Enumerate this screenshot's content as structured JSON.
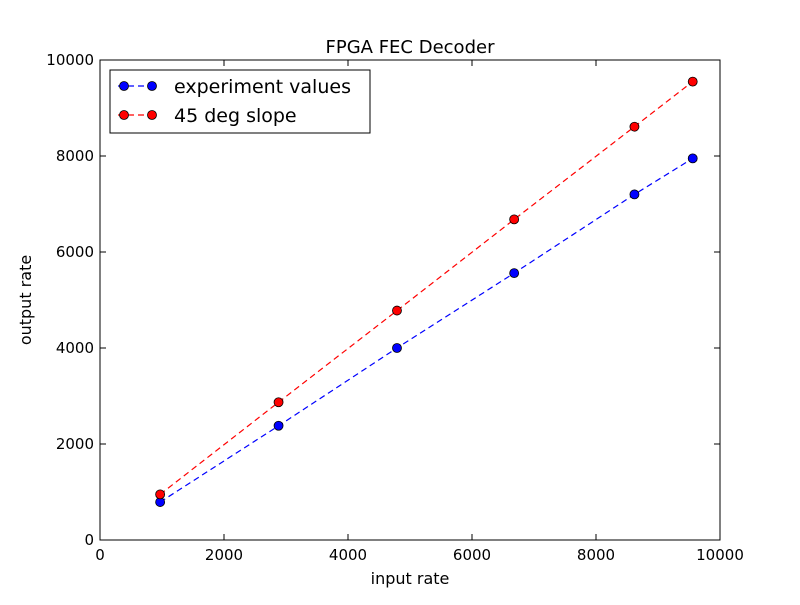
{
  "chart_data": {
    "type": "line",
    "title": "FPGA FEC Decoder",
    "xlabel": "input rate",
    "ylabel": "output rate",
    "xlim": [
      0,
      10000
    ],
    "ylim": [
      0,
      10000
    ],
    "xticks": [
      0,
      2000,
      4000,
      6000,
      8000,
      10000
    ],
    "yticks": [
      0,
      2000,
      4000,
      6000,
      8000,
      10000
    ],
    "xtick_labels": [
      "0",
      "2000",
      "4000",
      "6000",
      "8000",
      "10000"
    ],
    "ytick_labels": [
      "0",
      "2000",
      "4000",
      "6000",
      "8000",
      "10000"
    ],
    "grid": false,
    "legend_position": "top-left",
    "series": [
      {
        "name": "experiment values",
        "color": "#0000ff",
        "line_style": "dashed",
        "marker": "circle",
        "x": [
          970,
          2880,
          4790,
          6680,
          8620,
          9560
        ],
        "y": [
          790,
          2380,
          4000,
          5560,
          7200,
          7950
        ]
      },
      {
        "name": "45 deg slope",
        "color": "#ff0000",
        "line_style": "dashed",
        "marker": "circle",
        "x": [
          970,
          2880,
          4790,
          6680,
          8620,
          9560
        ],
        "y": [
          950,
          2870,
          4780,
          6680,
          8610,
          9550
        ]
      }
    ]
  }
}
